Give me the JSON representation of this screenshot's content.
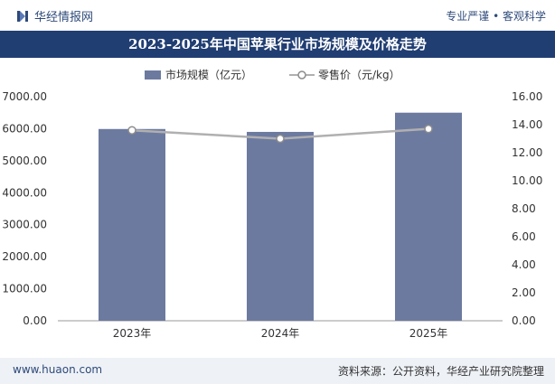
{
  "header": {
    "brand": "华经情报网",
    "tagline": "专业严谨 • 客观科学"
  },
  "footer": {
    "website": "www.huaon.com",
    "source": "资料来源：公开资料，华经产业研究院整理"
  },
  "colors": {
    "bar": "#6d7aa0",
    "line": "#b0b0b0",
    "marker_stroke": "#8c8c8c",
    "title_band": "#213e73",
    "brand": "#2e4a7a"
  },
  "chart_data": {
    "type": "bar",
    "title": "2023-2025年中国苹果行业市场规模及价格走势",
    "categories": [
      "2023年",
      "2024年",
      "2025年"
    ],
    "series": [
      {
        "name": "市场规模（亿元）",
        "type": "bar",
        "axis": "left",
        "values": [
          5990,
          5900,
          6500
        ]
      },
      {
        "name": "零售价（元/kg）",
        "type": "line",
        "axis": "right",
        "values": [
          13.6,
          13.0,
          13.7
        ]
      }
    ],
    "y_left": {
      "min": 0,
      "max": 7000,
      "ticks": [
        "0.00",
        "1000.00",
        "2000.00",
        "3000.00",
        "4000.00",
        "5000.00",
        "6000.00",
        "7000.00"
      ]
    },
    "y_right": {
      "min": 0,
      "max": 16,
      "ticks": [
        "0.00",
        "2.00",
        "4.00",
        "6.00",
        "8.00",
        "10.00",
        "12.00",
        "14.00",
        "16.00"
      ]
    },
    "grid": false,
    "legend": "top-center"
  }
}
